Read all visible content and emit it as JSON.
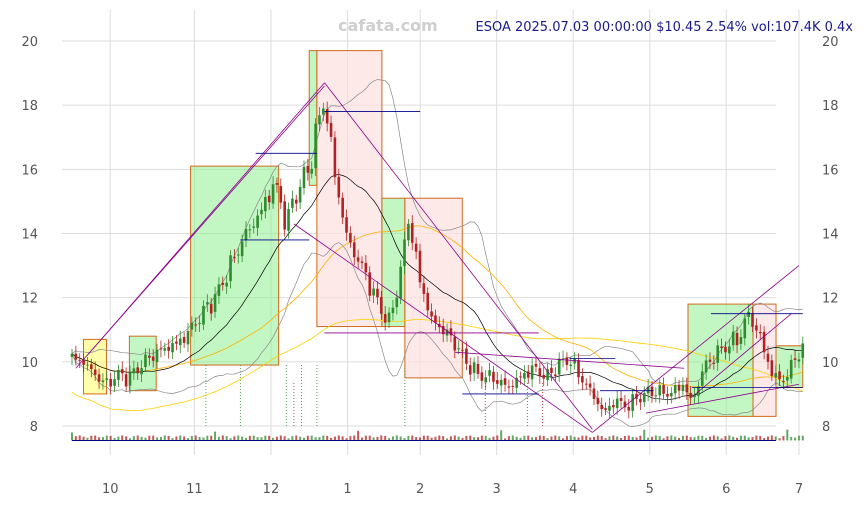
{
  "watermark": "cafata.com",
  "info_line": "ESOA 2025.07.03 00:00:00 $10.45 2.54% vol:107.4K 0.4x",
  "chart_data": {
    "type": "candlestick",
    "ticker": "ESOA",
    "last_bar": {
      "date": "2025.07.03 00:00:00",
      "close": 10.45,
      "change_pct": 2.54,
      "volume": "107.4K",
      "volume_ratio": "0.4x"
    },
    "x_ticks": [
      "10",
      "11",
      "12",
      "1",
      "2",
      "3",
      "4",
      "5",
      "6",
      "7"
    ],
    "y_ticks": [
      8,
      10,
      12,
      14,
      16,
      18,
      20
    ],
    "ylim": [
      7.3,
      20.4
    ],
    "x_range_months": [
      0,
      9.2
    ],
    "x_tick_positions": [
      0.5,
      1.6,
      2.6,
      3.6,
      4.55,
      5.55,
      6.55,
      7.55,
      8.55,
      9.5
    ],
    "grid": true,
    "close_anchors": [
      [
        0.0,
        10.1
      ],
      [
        0.15,
        10.0
      ],
      [
        0.3,
        9.6
      ],
      [
        0.45,
        9.3
      ],
      [
        0.6,
        9.6
      ],
      [
        0.75,
        9.5
      ],
      [
        0.9,
        9.9
      ],
      [
        1.05,
        10.2
      ],
      [
        1.2,
        10.4
      ],
      [
        1.4,
        10.6
      ],
      [
        1.55,
        11.0
      ],
      [
        1.7,
        11.5
      ],
      [
        1.9,
        12.1
      ],
      [
        2.05,
        12.9
      ],
      [
        2.25,
        13.9
      ],
      [
        2.45,
        14.6
      ],
      [
        2.65,
        15.6
      ],
      [
        2.8,
        14.3
      ],
      [
        2.95,
        15.4
      ],
      [
        3.1,
        16.0
      ],
      [
        3.2,
        17.3
      ],
      [
        3.3,
        18.2
      ],
      [
        3.45,
        15.6
      ],
      [
        3.6,
        13.8
      ],
      [
        3.8,
        12.9
      ],
      [
        4.0,
        11.8
      ],
      [
        4.15,
        11.2
      ],
      [
        4.3,
        12.9
      ],
      [
        4.4,
        14.5
      ],
      [
        4.55,
        12.5
      ],
      [
        4.7,
        11.3
      ],
      [
        4.85,
        11.0
      ],
      [
        5.0,
        10.6
      ],
      [
        5.15,
        10.0
      ],
      [
        5.3,
        9.6
      ],
      [
        5.5,
        9.5
      ],
      [
        5.7,
        9.2
      ],
      [
        5.9,
        9.6
      ],
      [
        6.05,
        9.8
      ],
      [
        6.2,
        9.5
      ],
      [
        6.35,
        9.9
      ],
      [
        6.5,
        10.1
      ],
      [
        6.65,
        9.5
      ],
      [
        6.8,
        9.0
      ],
      [
        6.95,
        8.4
      ],
      [
        7.1,
        8.8
      ],
      [
        7.25,
        8.6
      ],
      [
        7.4,
        8.9
      ],
      [
        7.6,
        9.1
      ],
      [
        7.8,
        9.0
      ],
      [
        8.0,
        9.3
      ],
      [
        8.1,
        8.7
      ],
      [
        8.25,
        9.8
      ],
      [
        8.4,
        10.2
      ],
      [
        8.55,
        10.5
      ],
      [
        8.7,
        10.7
      ],
      [
        8.85,
        11.5
      ],
      [
        9.0,
        10.7
      ],
      [
        9.15,
        9.6
      ],
      [
        9.3,
        9.4
      ],
      [
        9.45,
        10.1
      ],
      [
        9.55,
        10.45
      ]
    ],
    "boxes": [
      {
        "x0": 0.15,
        "x1": 0.45,
        "y0": 9.0,
        "y1": 10.7,
        "color": "yellow"
      },
      {
        "x0": 0.75,
        "x1": 1.1,
        "y0": 9.1,
        "y1": 10.8,
        "color": "green"
      },
      {
        "x0": 1.55,
        "x1": 2.7,
        "y0": 9.9,
        "y1": 16.1,
        "color": "green"
      },
      {
        "x0": 3.1,
        "x1": 3.2,
        "y0": 15.5,
        "y1": 19.7,
        "color": "green"
      },
      {
        "x0": 3.2,
        "x1": 4.05,
        "y0": 11.1,
        "y1": 19.7,
        "color": "red"
      },
      {
        "x0": 4.05,
        "x1": 4.35,
        "y0": 11.1,
        "y1": 15.1,
        "color": "green"
      },
      {
        "x0": 4.35,
        "x1": 5.1,
        "y0": 9.5,
        "y1": 15.1,
        "color": "red"
      },
      {
        "x0": 8.05,
        "x1": 8.9,
        "y0": 8.3,
        "y1": 11.8,
        "color": "green"
      },
      {
        "x0": 8.9,
        "x1": 9.2,
        "y0": 8.3,
        "y1": 11.8,
        "color": "red"
      },
      {
        "x0": 9.2,
        "x1": 9.55,
        "y0": 9.2,
        "y1": 10.5,
        "color": "green"
      }
    ],
    "trendlines": [
      [
        [
          0.2,
          10.2
        ],
        [
          3.3,
          18.7
        ]
      ],
      [
        [
          3.3,
          18.7
        ],
        [
          6.8,
          7.9
        ]
      ],
      [
        [
          0.05,
          9.8
        ],
        [
          3.3,
          18.6
        ]
      ],
      [
        [
          2.9,
          14.3
        ],
        [
          6.8,
          7.8
        ]
      ],
      [
        [
          6.8,
          7.8
        ],
        [
          9.5,
          13.0
        ]
      ],
      [
        [
          5.0,
          10.3
        ],
        [
          8.0,
          9.8
        ]
      ],
      [
        [
          8.1,
          8.9
        ],
        [
          9.4,
          11.5
        ]
      ],
      [
        [
          7.5,
          8.4
        ],
        [
          9.5,
          9.3
        ]
      ]
    ],
    "levels": [
      {
        "x0": 3.3,
        "x1": 4.55,
        "y": 17.8,
        "color": "blue"
      },
      {
        "x0": 2.4,
        "x1": 3.2,
        "y": 16.5,
        "color": "blue"
      },
      {
        "x0": 2.2,
        "x1": 3.1,
        "y": 13.8,
        "color": "blue"
      },
      {
        "x0": 3.3,
        "x1": 6.1,
        "y": 10.9,
        "color": "purple"
      },
      {
        "x0": 5.1,
        "x1": 6.1,
        "y": 9.0,
        "color": "blue"
      },
      {
        "x0": 6.5,
        "x1": 7.1,
        "y": 10.1,
        "color": "blue"
      },
      {
        "x0": 6.9,
        "x1": 7.6,
        "y": 9.1,
        "color": "blue"
      },
      {
        "x0": 8.35,
        "x1": 9.55,
        "y": 11.5,
        "color": "blue"
      },
      {
        "x0": 8.1,
        "x1": 9.55,
        "y": 9.2,
        "color": "blue"
      }
    ],
    "volume_baseline": 7.55,
    "colors": {
      "up": "#2e8b2e",
      "down": "#b22222",
      "box_green": "#90ee90",
      "box_red": "#fde0e0",
      "box_yellow": "#ffff66",
      "box_border": "#d2691e",
      "trendline": "#8b008b",
      "level_blue": "#00008b",
      "ma_short": "#000000",
      "ma_mid": "#ffb000",
      "ma_long": "#ffd000",
      "band": "#888888",
      "grid": "#dddddd",
      "axis_text": "#555555",
      "info_text": "#1a1a8c",
      "watermark": "#cfcfcf"
    }
  }
}
